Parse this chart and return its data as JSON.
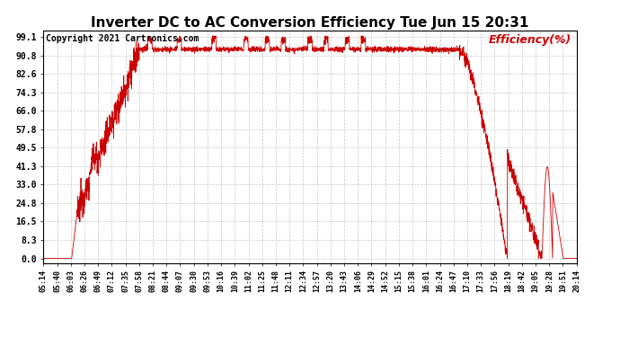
{
  "title": "Inverter DC to AC Conversion Efficiency Tue Jun 15 20:31",
  "copyright": "Copyright 2021 Cartronics.com",
  "ylabel": "Efficiency(%)",
  "ylabel_color": "#cc0000",
  "line_color": "#cc0000",
  "background_color": "#ffffff",
  "yticks": [
    0.0,
    8.3,
    16.5,
    24.8,
    33.0,
    41.3,
    49.5,
    57.8,
    66.0,
    74.3,
    82.6,
    90.8,
    99.1
  ],
  "xtick_labels": [
    "05:14",
    "05:40",
    "06:03",
    "06:26",
    "06:49",
    "07:12",
    "07:35",
    "07:58",
    "08:21",
    "08:44",
    "09:07",
    "09:30",
    "09:53",
    "10:16",
    "10:39",
    "11:02",
    "11:25",
    "11:48",
    "12:11",
    "12:34",
    "12:57",
    "13:20",
    "13:43",
    "14:06",
    "14:29",
    "14:52",
    "15:15",
    "15:38",
    "16:01",
    "16:24",
    "16:47",
    "17:10",
    "17:33",
    "17:56",
    "18:19",
    "18:42",
    "19:05",
    "19:28",
    "19:51",
    "20:14"
  ],
  "grid_color": "#bbbbbb",
  "title_fontsize": 11,
  "copyright_fontsize": 7,
  "ylabel_fontsize": 9,
  "yaxis_fontsize": 7,
  "xaxis_fontsize": 6
}
